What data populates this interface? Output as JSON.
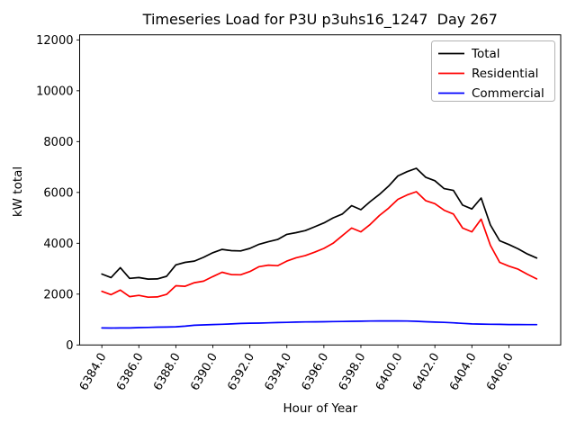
{
  "chart_data": {
    "type": "line",
    "title": "Timeseries Load for P3U p3uhs16_1247  Day 267",
    "xlabel": "Hour of Year",
    "ylabel": "kW total",
    "grid": false,
    "legend_position": "upper right",
    "xlim": [
      6382.8,
      6408.8
    ],
    "ylim": [
      0,
      12200
    ],
    "x_ticks": [
      6384,
      6386,
      6388,
      6390,
      6392,
      6394,
      6396,
      6398,
      6400,
      6402,
      6404,
      6406
    ],
    "x_tick_labels": [
      "6384.0",
      "6386.0",
      "6388.0",
      "6390.0",
      "6392.0",
      "6394.0",
      "6396.0",
      "6398.0",
      "6400.0",
      "6402.0",
      "6404.0",
      "6406.0"
    ],
    "y_ticks": [
      0,
      2000,
      4000,
      6000,
      8000,
      10000,
      12000
    ],
    "x_tick_rotation": 60,
    "x": [
      6384.0,
      6384.5,
      6385.0,
      6385.5,
      6386.0,
      6386.5,
      6387.0,
      6387.5,
      6388.0,
      6388.5,
      6389.0,
      6389.5,
      6390.0,
      6390.5,
      6391.0,
      6391.5,
      6392.0,
      6392.5,
      6393.0,
      6393.5,
      6394.0,
      6394.5,
      6395.0,
      6395.5,
      6396.0,
      6396.5,
      6397.0,
      6397.5,
      6398.0,
      6398.5,
      6399.0,
      6399.5,
      6400.0,
      6400.5,
      6401.0,
      6401.5,
      6402.0,
      6402.5,
      6403.0,
      6403.5,
      6404.0,
      6404.5,
      6405.0,
      6405.5,
      6406.0,
      6406.5,
      6407.0,
      6407.5
    ],
    "series": [
      {
        "name": "Total",
        "color": "#000000",
        "values": [
          2790,
          2650,
          3040,
          2620,
          2650,
          2590,
          2600,
          2700,
          3150,
          3250,
          3300,
          3450,
          3630,
          3760,
          3710,
          3700,
          3800,
          3960,
          4060,
          4150,
          4350,
          4420,
          4500,
          4650,
          4800,
          5000,
          5150,
          5480,
          5320,
          5640,
          5920,
          6250,
          6650,
          6820,
          6950,
          6600,
          6460,
          6150,
          6080,
          5500,
          5350,
          5780,
          4720,
          4100,
          3950,
          3780,
          3580,
          3420
        ]
      },
      {
        "name": "Residential",
        "color": "#ff0000",
        "values": [
          2110,
          1980,
          2160,
          1900,
          1950,
          1880,
          1890,
          1990,
          2330,
          2310,
          2450,
          2510,
          2690,
          2860,
          2770,
          2760,
          2890,
          3080,
          3140,
          3120,
          3300,
          3430,
          3520,
          3650,
          3800,
          4000,
          4300,
          4600,
          4450,
          4740,
          5090,
          5380,
          5730,
          5900,
          6030,
          5680,
          5560,
          5300,
          5150,
          4600,
          4450,
          4950,
          3920,
          3250,
          3100,
          2980,
          2780,
          2600
        ]
      },
      {
        "name": "Commercial",
        "color": "#0000ff",
        "values": [
          670,
          665,
          668,
          670,
          685,
          690,
          700,
          705,
          715,
          740,
          775,
          790,
          805,
          815,
          830,
          845,
          855,
          862,
          870,
          880,
          890,
          898,
          905,
          910,
          915,
          920,
          925,
          930,
          935,
          940,
          945,
          945,
          945,
          940,
          930,
          915,
          900,
          890,
          870,
          850,
          830,
          820,
          815,
          810,
          805,
          802,
          800,
          800
        ]
      }
    ]
  }
}
